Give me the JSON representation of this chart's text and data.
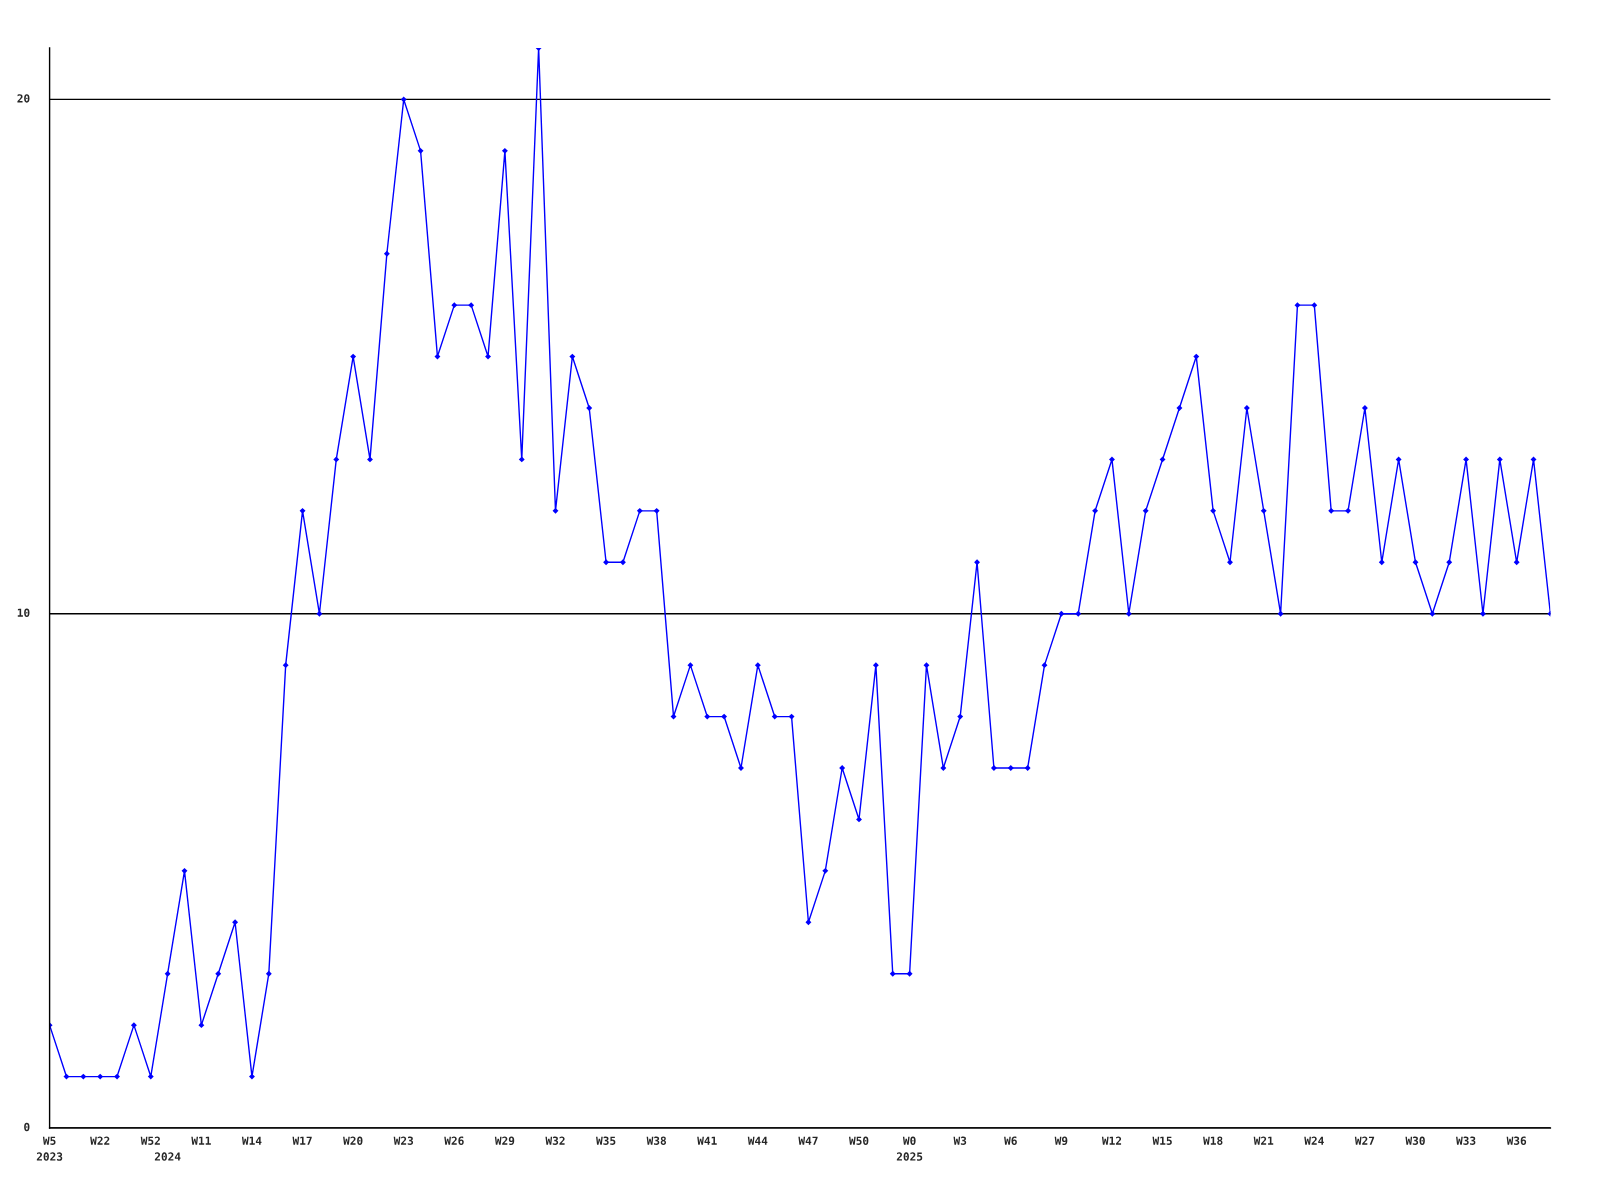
{
  "chart_data": {
    "type": "line",
    "categories": [
      "W5\n2023",
      null,
      null,
      "W22",
      null,
      null,
      "W52",
      "\n2024",
      null,
      "W11",
      null,
      null,
      "W14",
      null,
      null,
      "W17",
      null,
      null,
      "W20",
      null,
      null,
      "W23",
      null,
      null,
      "W26",
      null,
      null,
      "W29",
      null,
      null,
      "W32",
      null,
      null,
      "W35",
      null,
      null,
      "W38",
      null,
      null,
      "W41",
      null,
      null,
      "W44",
      null,
      null,
      "W47",
      null,
      null,
      "W50",
      null,
      null,
      "W0\n2025",
      null,
      null,
      "W3",
      null,
      null,
      "W6",
      null,
      null,
      "W9",
      null,
      null,
      "W12",
      null,
      null,
      "W15",
      null,
      null,
      "W18",
      null,
      null,
      "W21",
      null,
      null,
      "W24",
      null,
      null,
      "W27",
      null,
      null,
      "W30",
      null,
      null,
      "W33",
      null,
      null,
      "W36",
      null,
      null
    ],
    "series": [
      {
        "color": "#0000ff",
        "values": [
          2,
          1,
          1,
          1,
          1,
          2,
          1,
          3,
          5,
          2,
          3,
          4,
          1,
          3,
          9,
          12,
          10,
          13,
          15,
          13,
          17,
          20,
          19,
          15,
          16,
          16,
          15,
          19,
          13,
          21,
          12,
          15,
          14,
          11,
          11,
          12,
          12,
          8,
          9,
          8,
          8,
          7,
          9,
          8,
          8,
          4,
          5,
          7,
          6,
          9,
          3,
          3,
          9,
          7,
          8,
          11,
          7,
          7,
          7,
          9,
          10,
          10,
          12,
          13,
          10,
          12,
          13,
          14,
          15,
          12,
          11,
          14,
          12,
          10,
          16,
          16,
          12,
          12,
          14,
          11,
          13,
          11,
          10,
          11,
          13,
          10,
          13,
          11,
          13,
          10
        ]
      }
    ],
    "ylim": [
      0,
      21
    ],
    "yticks": [
      0,
      10,
      20
    ],
    "grid": "y",
    "marker": "diamond",
    "line_style": "solid"
  }
}
